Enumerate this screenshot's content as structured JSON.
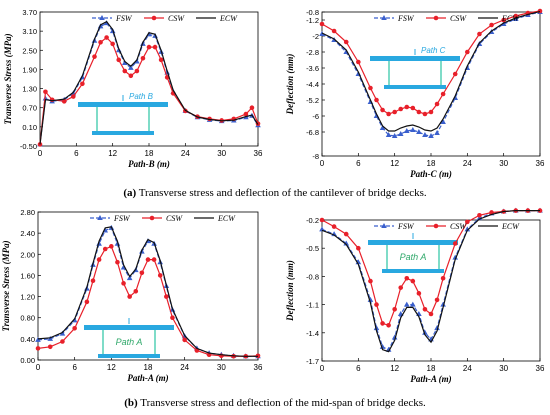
{
  "captions": {
    "a_label": "(a)",
    "a_text": "Transverse stress and deflection of the cantilever of bridge decks.",
    "b_label": "(b)",
    "b_text": "Transverse stress and deflection of the mid-span of bridge decks."
  },
  "colors": {
    "FSW": "#3a5fcd",
    "CSW": "#e8202a",
    "ECW": "#111111",
    "beam": "#29a8e0",
    "web": "#7fdcc8"
  },
  "chart_data": [
    {
      "type": "line",
      "title": "",
      "xlabel": "Path-B (m)",
      "ylabel": "Transverse Stress (MPa)",
      "xlim": [
        0,
        36
      ],
      "ylim": [
        -0.5,
        3.7
      ],
      "xticks": [
        "0",
        "6",
        "12",
        "18",
        "24",
        "30",
        "36"
      ],
      "yticks": [
        "-0.50",
        "0.10",
        "0.70",
        "1.30",
        "1.90",
        "2.50",
        "3.10",
        "3.70"
      ],
      "legend": [
        "FSW",
        "CSW",
        "ECW"
      ],
      "legend_position": "top",
      "inset_label": "Path B",
      "series": [
        {
          "name": "FSW",
          "x": [
            0,
            0.9,
            2,
            4,
            5.5,
            7,
            9,
            10,
            11,
            12,
            13,
            14,
            15,
            16,
            17,
            18,
            19,
            20,
            21,
            22,
            24,
            26,
            28,
            30,
            32,
            34,
            35,
            36
          ],
          "y": [
            -0.45,
            0.99,
            0.9,
            0.95,
            1.15,
            1.65,
            2.8,
            3.25,
            3.35,
            3.1,
            2.5,
            2.1,
            1.95,
            2.15,
            2.7,
            3.0,
            2.95,
            2.45,
            1.8,
            1.2,
            0.6,
            0.4,
            0.32,
            0.28,
            0.3,
            0.4,
            0.45,
            0.15
          ]
        },
        {
          "name": "CSW",
          "x": [
            0,
            0.9,
            2,
            4,
            5.5,
            7,
            9,
            10,
            11,
            12,
            13,
            14,
            15,
            16,
            17,
            18,
            19,
            20,
            21,
            22,
            24,
            26,
            28,
            30,
            32,
            34,
            35,
            36
          ],
          "y": [
            -0.45,
            1.2,
            0.95,
            0.9,
            1.05,
            1.45,
            2.3,
            2.75,
            2.9,
            2.7,
            2.2,
            1.85,
            1.7,
            1.85,
            2.25,
            2.6,
            2.6,
            2.2,
            1.65,
            1.15,
            0.6,
            0.42,
            0.35,
            0.3,
            0.35,
            0.5,
            0.7,
            0.2
          ]
        },
        {
          "name": "ECW",
          "x": [
            0,
            0.9,
            2,
            4,
            5.5,
            7,
            9,
            10,
            11,
            12,
            13,
            14,
            15,
            16,
            17,
            18,
            19,
            20,
            21,
            22,
            24,
            26,
            28,
            30,
            32,
            34,
            35,
            36
          ],
          "y": [
            -0.45,
            0.95,
            0.92,
            0.97,
            1.18,
            1.7,
            2.85,
            3.3,
            3.4,
            3.15,
            2.55,
            2.15,
            2.0,
            2.2,
            2.75,
            3.05,
            3.0,
            2.5,
            1.85,
            1.25,
            0.62,
            0.41,
            0.33,
            0.29,
            0.31,
            0.42,
            0.47,
            0.17
          ]
        }
      ]
    },
    {
      "type": "line",
      "title": "",
      "xlabel": "Path-C (m)",
      "ylabel": "Deflection (mm)",
      "xlim": [
        0,
        36
      ],
      "ylim": [
        -8,
        -0.8
      ],
      "xticks": [
        "0",
        "6",
        "12",
        "18",
        "24",
        "30",
        "36"
      ],
      "yticks": [
        "-8",
        "-6.8",
        "-6",
        "-5.2",
        "-4.4",
        "-3.6",
        "-2.8",
        "-2",
        "-1.2",
        "-0.8"
      ],
      "ytick_values": [
        -8,
        -6.8,
        -6,
        -5.2,
        -4.4,
        -3.6,
        -2.8,
        -2,
        -1.2,
        -0.8
      ],
      "legend": [
        "FSW",
        "CSW",
        "ECW"
      ],
      "legend_position": "top",
      "inset_label": "Path C",
      "series": [
        {
          "name": "FSW",
          "x": [
            0,
            2,
            4,
            6,
            8,
            9,
            10,
            11,
            12,
            13,
            14,
            15,
            16,
            17,
            18,
            19,
            20,
            22,
            24,
            26,
            28,
            30,
            32,
            34,
            36
          ],
          "y": [
            -1.9,
            -2.2,
            -2.8,
            -3.9,
            -5.3,
            -6.0,
            -6.6,
            -6.95,
            -7.0,
            -6.9,
            -6.75,
            -6.7,
            -6.8,
            -6.95,
            -7.0,
            -6.85,
            -6.3,
            -5.1,
            -3.6,
            -2.4,
            -1.8,
            -1.4,
            -1.15,
            -0.95,
            -0.8
          ]
        },
        {
          "name": "CSW",
          "x": [
            0,
            2,
            4,
            6,
            8,
            9,
            10,
            11,
            12,
            13,
            14,
            15,
            16,
            17,
            18,
            19,
            20,
            22,
            24,
            26,
            28,
            30,
            32,
            34,
            36
          ],
          "y": [
            -1.4,
            -1.75,
            -2.3,
            -3.3,
            -4.6,
            -5.2,
            -5.7,
            -5.9,
            -5.8,
            -5.65,
            -5.55,
            -5.6,
            -5.8,
            -5.9,
            -5.8,
            -5.4,
            -4.9,
            -3.9,
            -2.8,
            -1.9,
            -1.45,
            -1.2,
            -1.0,
            -0.85,
            -0.75
          ]
        },
        {
          "name": "ECW",
          "x": [
            0,
            2,
            4,
            6,
            8,
            9,
            10,
            11,
            12,
            13,
            14,
            15,
            16,
            17,
            18,
            19,
            20,
            22,
            24,
            26,
            28,
            30,
            32,
            34,
            36
          ],
          "y": [
            -1.85,
            -2.15,
            -2.7,
            -3.8,
            -5.2,
            -5.9,
            -6.5,
            -6.75,
            -6.75,
            -6.6,
            -6.5,
            -6.45,
            -6.55,
            -6.7,
            -6.75,
            -6.6,
            -6.15,
            -5.0,
            -3.5,
            -2.35,
            -1.75,
            -1.35,
            -1.1,
            -0.92,
            -0.78
          ]
        }
      ]
    },
    {
      "type": "line",
      "title": "",
      "xlabel": "Path-A (m)",
      "ylabel": "Transverse Stress (MPa)",
      "xlim": [
        0,
        36
      ],
      "ylim": [
        0,
        2.8
      ],
      "xticks": [
        "0",
        "6",
        "12",
        "18",
        "24",
        "30",
        "36"
      ],
      "yticks": [
        "0.00",
        "0.40",
        "0.80",
        "1.20",
        "1.60",
        "2.00",
        "2.40",
        "2.80"
      ],
      "legend": [
        "FSW",
        "CSW",
        "ECW"
      ],
      "legend_position": "top",
      "inset_label": "Path A",
      "series": [
        {
          "name": "FSW",
          "x": [
            0,
            2,
            4,
            6,
            8,
            9,
            10,
            11,
            12,
            13,
            14,
            15,
            16,
            17,
            18,
            19,
            20,
            21,
            22,
            24,
            26,
            28,
            30,
            32,
            34,
            36
          ],
          "y": [
            0.38,
            0.4,
            0.5,
            0.75,
            1.35,
            1.8,
            2.2,
            2.45,
            2.5,
            2.2,
            1.75,
            1.55,
            1.7,
            2.05,
            2.25,
            2.2,
            1.85,
            1.4,
            0.95,
            0.45,
            0.22,
            0.13,
            0.1,
            0.08,
            0.07,
            0.07
          ]
        },
        {
          "name": "CSW",
          "x": [
            0,
            2,
            4,
            6,
            8,
            9,
            10,
            11,
            12,
            13,
            14,
            15,
            16,
            17,
            18,
            19,
            20,
            21,
            22,
            24,
            26,
            28,
            30,
            32,
            34,
            36
          ],
          "y": [
            0.22,
            0.25,
            0.35,
            0.6,
            1.1,
            1.5,
            1.9,
            2.1,
            2.15,
            1.85,
            1.45,
            1.2,
            1.3,
            1.65,
            1.9,
            1.9,
            1.6,
            1.2,
            0.8,
            0.38,
            0.18,
            0.1,
            0.08,
            0.07,
            0.07,
            0.08
          ]
        },
        {
          "name": "ECW",
          "x": [
            0,
            2,
            4,
            6,
            8,
            9,
            10,
            11,
            12,
            13,
            14,
            15,
            16,
            17,
            18,
            19,
            20,
            21,
            22,
            24,
            26,
            28,
            30,
            32,
            34,
            36
          ],
          "y": [
            0.4,
            0.42,
            0.52,
            0.78,
            1.38,
            1.83,
            2.25,
            2.5,
            2.52,
            2.25,
            1.8,
            1.58,
            1.72,
            2.08,
            2.28,
            2.22,
            1.88,
            1.42,
            0.97,
            0.46,
            0.22,
            0.13,
            0.1,
            0.08,
            0.07,
            0.07
          ]
        }
      ]
    },
    {
      "type": "line",
      "title": "",
      "xlabel": "Path-A (m)",
      "ylabel": "Deflection (mm)",
      "xlim": [
        0,
        36
      ],
      "ylim": [
        -1.7,
        -0.2
      ],
      "xticks": [
        "0",
        "6",
        "12",
        "18",
        "24",
        "30",
        "36"
      ],
      "yticks": [
        "-1.7",
        "-1.4",
        "-1.1",
        "-0.8",
        "-0.5",
        "-0.2"
      ],
      "legend": [
        "FSW",
        "CSW",
        "ECW"
      ],
      "legend_position": "top",
      "inset_label": "Path A",
      "series": [
        {
          "name": "FSW",
          "x": [
            0,
            2,
            4,
            6,
            8,
            9,
            10,
            11,
            12,
            13,
            14,
            15,
            16,
            17,
            18,
            19,
            20,
            22,
            24,
            26,
            28,
            30,
            32,
            34,
            36
          ],
          "y": [
            -0.3,
            -0.35,
            -0.45,
            -0.65,
            -1.05,
            -1.35,
            -1.55,
            -1.58,
            -1.45,
            -1.2,
            -1.1,
            -1.1,
            -1.2,
            -1.4,
            -1.47,
            -1.35,
            -1.1,
            -0.6,
            -0.3,
            -0.18,
            -0.13,
            -0.11,
            -0.1,
            -0.1,
            -0.1
          ]
        },
        {
          "name": "CSW",
          "x": [
            0,
            2,
            4,
            6,
            8,
            9,
            10,
            11,
            12,
            13,
            14,
            15,
            16,
            17,
            18,
            19,
            20,
            22,
            24,
            26,
            28,
            30,
            32,
            34,
            36
          ],
          "y": [
            -0.2,
            -0.27,
            -0.35,
            -0.5,
            -0.85,
            -1.1,
            -1.3,
            -1.32,
            -1.15,
            -0.92,
            -0.82,
            -0.85,
            -0.98,
            -1.15,
            -1.2,
            -1.05,
            -0.82,
            -0.45,
            -0.22,
            -0.15,
            -0.12,
            -0.11,
            -0.1,
            -0.1,
            -0.1
          ]
        },
        {
          "name": "ECW",
          "x": [
            0,
            2,
            4,
            6,
            8,
            9,
            10,
            11,
            12,
            13,
            14,
            15,
            16,
            17,
            18,
            19,
            20,
            22,
            24,
            26,
            28,
            30,
            32,
            34,
            36
          ],
          "y": [
            -0.31,
            -0.36,
            -0.46,
            -0.67,
            -1.08,
            -1.38,
            -1.58,
            -1.6,
            -1.48,
            -1.24,
            -1.13,
            -1.13,
            -1.23,
            -1.42,
            -1.5,
            -1.38,
            -1.13,
            -0.62,
            -0.31,
            -0.19,
            -0.14,
            -0.11,
            -0.1,
            -0.1,
            -0.1
          ]
        }
      ]
    }
  ]
}
